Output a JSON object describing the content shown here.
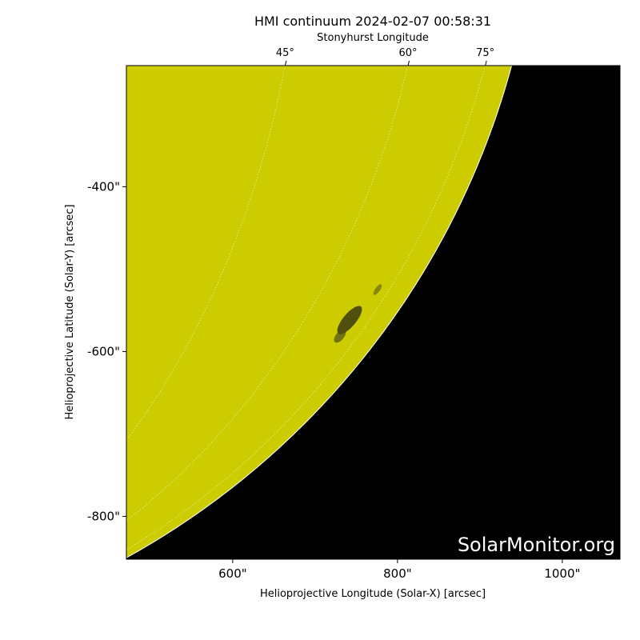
{
  "chart_data": {
    "type": "image",
    "title": "HMI continuum 2024-02-07 00:58:31",
    "top_axis_label": "Stonyhurst Longitude",
    "xlabel": "Helioprojective Longitude (Solar-X) [arcsec]",
    "ylabel": "Helioprojective Latitude (Solar-Y) [arcsec]",
    "watermark": "SolarMonitor.org",
    "xlim": [
      471,
      1070
    ],
    "ylim": [
      -852,
      -253
    ],
    "xticks": [
      {
        "value": 600,
        "label": "600\""
      },
      {
        "value": 800,
        "label": "800\""
      },
      {
        "value": 1000,
        "label": "1000\""
      }
    ],
    "yticks": [
      {
        "value": -400,
        "label": "-400\""
      },
      {
        "value": -600,
        "label": "-600\""
      },
      {
        "value": -800,
        "label": "-800\""
      }
    ],
    "top_ticks": [
      {
        "value": 45,
        "label": "45°"
      },
      {
        "value": 60,
        "label": "60°"
      },
      {
        "value": 75,
        "label": "75°"
      }
    ],
    "disk_color": "#cccc00",
    "background_color": "#000000"
  }
}
